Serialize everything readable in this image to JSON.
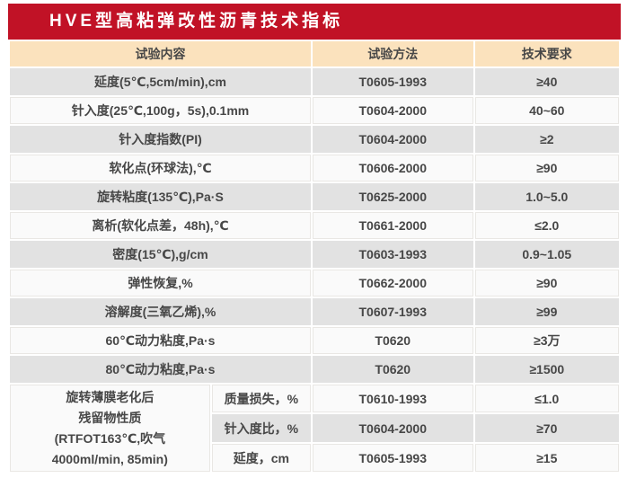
{
  "title": "HVE型高粘弹改性沥青技术指标",
  "colors": {
    "accent_red": "#C11226",
    "header_cream": "#FBE2BD",
    "row_gray": "#E2E2E2",
    "row_light": "#FAFAFA",
    "text": "#474747"
  },
  "table": {
    "headers": [
      "试验内容",
      "试验方法",
      "技术要求"
    ],
    "rows": [
      {
        "content": "延度(5℃,5cm/min),cm",
        "method": "T0605-1993",
        "requirement": "≥40"
      },
      {
        "content": "针入度(25℃,100g，5s),0.1mm",
        "method": "T0604-2000",
        "requirement": "40~60"
      },
      {
        "content": "针入度指数(PI)",
        "method": "T0604-2000",
        "requirement": "≥2"
      },
      {
        "content": "软化点(环球法),℃",
        "method": "T0606-2000",
        "requirement": "≥90"
      },
      {
        "content": "旋转粘度(135℃),Pa·S",
        "method": "T0625-2000",
        "requirement": "1.0~5.0"
      },
      {
        "content": "离析(软化点差，48h),℃",
        "method": "T0661-2000",
        "requirement": "≤2.0"
      },
      {
        "content": "密度(15℃),g/cm",
        "method": "T0603-1993",
        "requirement": "0.9~1.05"
      },
      {
        "content": "弹性恢复,%",
        "method": "T0662-2000",
        "requirement": "≥90"
      },
      {
        "content": "溶解度(三氧乙烯),%",
        "method": "T0607-1993",
        "requirement": "≥99"
      },
      {
        "content": "60℃动力粘度,Pa·s",
        "method": "T0620",
        "requirement": "≥3万"
      },
      {
        "content": "80℃动力粘度,Pa·s",
        "method": "T0620",
        "requirement": "≥1500"
      }
    ],
    "aged_group": {
      "label_lines": [
        "旋转薄膜老化后",
        "残留物性质",
        "(RTFOT163℃,吹气",
        "4000ml/min, 85min)"
      ],
      "sub_rows": [
        {
          "property": "质量损失，%",
          "method": "T0610-1993",
          "requirement": "≤1.0"
        },
        {
          "property": "针入度比，%",
          "method": "T0604-2000",
          "requirement": "≥70"
        },
        {
          "property": "延度，cm",
          "method": "T0605-1993",
          "requirement": "≥15"
        }
      ]
    }
  }
}
